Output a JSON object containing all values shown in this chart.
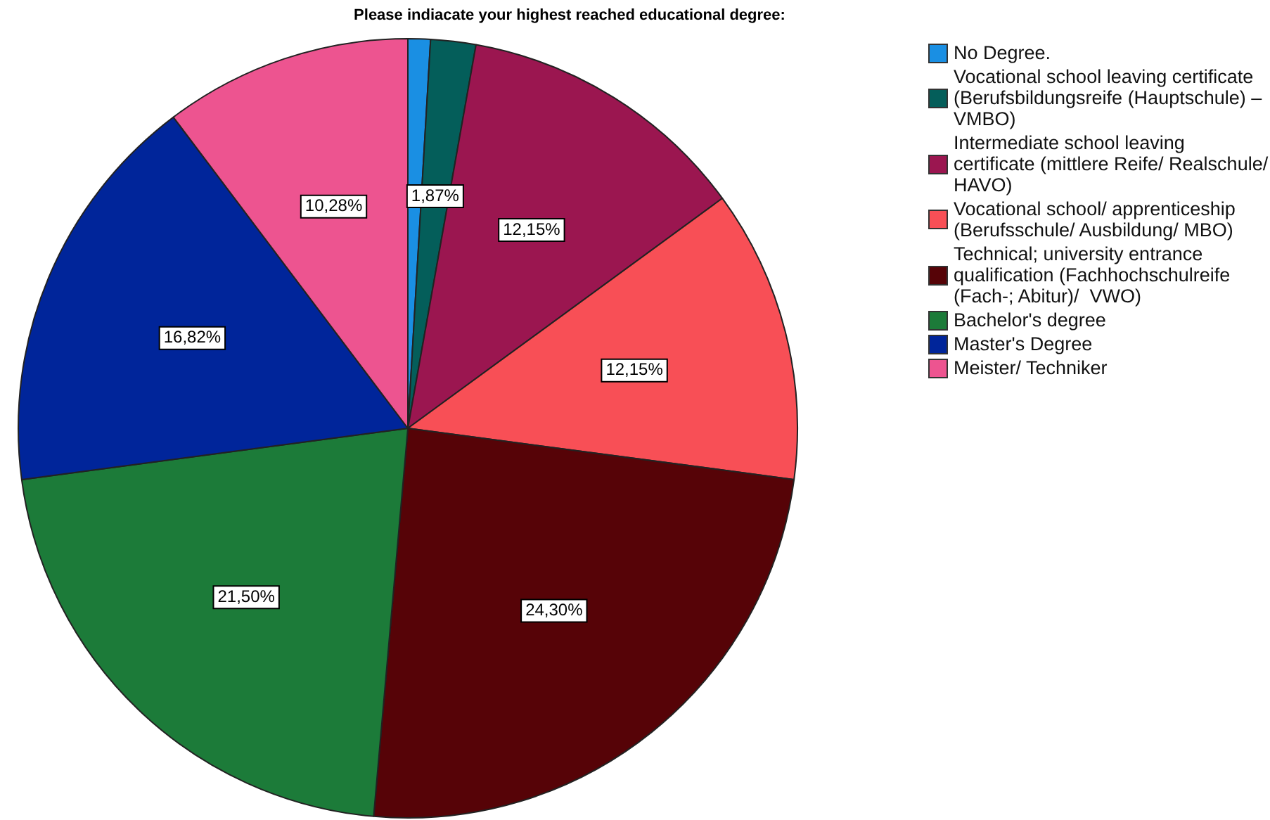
{
  "chart_data": {
    "type": "pie",
    "title": "Please indiacate your highest reached educational degree:",
    "categories": [
      "No Degree.",
      "Vocational school leaving certificate (Berufsbildungsreife (Hauptschule) – VMBO)",
      "Intermediate school leaving certificate (mittlere Reife/ Realschule/ HAVO)",
      "Vocational school/ apprenticeship (Berufsschule/ Ausbildung/ MBO)",
      "Technical; university entrance qualification (Fachhochschulreife (Fach-; Abitur)/  VWO)",
      "Bachelor's degree",
      "Master's Degree",
      "Meister/ Techniker"
    ],
    "values": [
      0.93,
      1.87,
      12.15,
      12.15,
      24.3,
      21.5,
      16.82,
      10.28
    ],
    "value_labels": [
      null,
      "1,87%",
      "12,15%",
      "12,15%",
      "24,30%",
      "21,50%",
      "16,82%",
      "10,28%"
    ],
    "colors": [
      "#1a8fe3",
      "#045e5a",
      "#9b1650",
      "#f84f56",
      "#560307",
      "#1c7b39",
      "#00259a",
      "#ed5490"
    ],
    "legend": "right"
  }
}
